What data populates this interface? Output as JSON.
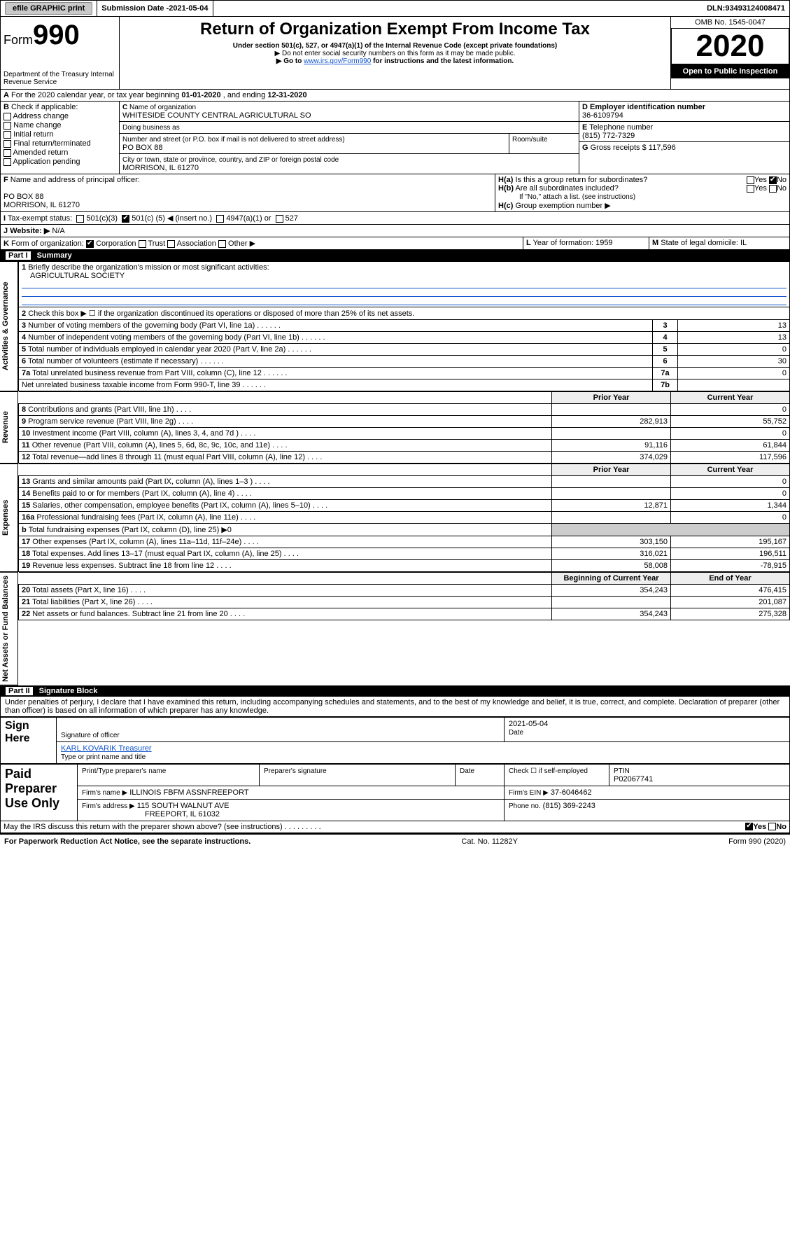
{
  "topbar": {
    "efile": "efile GRAPHIC print",
    "subdate_label": "Submission Date - ",
    "subdate": "2021-05-04",
    "dln_label": "DLN: ",
    "dln": "93493124008471"
  },
  "header": {
    "form_prefix": "Form",
    "form_no": "990",
    "dept": "Department of the Treasury\nInternal Revenue Service",
    "title": "Return of Organization Exempt From Income Tax",
    "sub1": "Under section 501(c), 527, or 4947(a)(1) of the Internal Revenue Code (except private foundations)",
    "sub2": "▶ Do not enter social security numbers on this form as it may be made public.",
    "sub3_pre": "▶ Go to ",
    "sub3_link": "www.irs.gov/Form990",
    "sub3_post": " for instructions and the latest information.",
    "omb": "OMB No. 1545-0047",
    "year": "2020",
    "openpub": "Open to Public Inspection"
  },
  "A": {
    "text": "For the 2020 calendar year, or tax year beginning ",
    "begin": "01-01-2020",
    "mid": " , and ending ",
    "end": "12-31-2020"
  },
  "B": {
    "label": "Check if applicable:",
    "opts": [
      "Address change",
      "Name change",
      "Initial return",
      "Final return/terminated",
      "Amended return",
      "Application pending"
    ]
  },
  "C": {
    "name_label": "Name of organization",
    "name": "WHITESIDE COUNTY CENTRAL AGRICULTURAL SO",
    "dba_label": "Doing business as",
    "addr_label": "Number and street (or P.O. box if mail is not delivered to street address)",
    "room_label": "Room/suite",
    "addr": "PO BOX 88",
    "city_label": "City or town, state or province, country, and ZIP or foreign postal code",
    "city": "MORRISON, IL  61270"
  },
  "D": {
    "label": "Employer identification number",
    "val": "36-6109794"
  },
  "E": {
    "label": "Telephone number",
    "val": "(815) 772-7329"
  },
  "G": {
    "label": "Gross receipts $",
    "val": "117,596"
  },
  "F": {
    "label": "Name and address of principal officer:",
    "line1": "PO BOX 88",
    "line2": "MORRISON, IL  61270"
  },
  "H": {
    "a": "Is this a group return for subordinates?",
    "b": "Are all subordinates included?",
    "b_note": "If \"No,\" attach a list. (see instructions)",
    "c": "Group exemption number ▶",
    "a_ans_no": true
  },
  "I": {
    "label": "Tax-exempt status:",
    "o1": "501(c)(3)",
    "o2_pre": "501(c) (",
    "o2_num": "5",
    "o2_post": ") ◀ (insert no.)",
    "o3": "4947(a)(1) or",
    "o4": "527"
  },
  "J": {
    "label": "Website: ▶",
    "val": "N/A"
  },
  "K": {
    "label": "Form of organization:",
    "opts": [
      "Corporation",
      "Trust",
      "Association",
      "Other ▶"
    ],
    "checked": 0
  },
  "L": {
    "label": "Year of formation:",
    "val": "1959"
  },
  "M": {
    "label": "State of legal domicile:",
    "val": "IL"
  },
  "partI": {
    "bar": "Part I",
    "bar_title": "Summary",
    "l1_label": "Briefly describe the organization's mission or most significant activities:",
    "l1_val": "AGRICULTURAL SOCIETY",
    "l2": "Check this box ▶ ☐ if the organization discontinued its operations or disposed of more than 25% of its net assets.",
    "rows_simple": [
      {
        "n": "3",
        "t": "Number of voting members of the governing body (Part VI, line 1a)",
        "box": "3",
        "v": "13"
      },
      {
        "n": "4",
        "t": "Number of independent voting members of the governing body (Part VI, line 1b)",
        "box": "4",
        "v": "13"
      },
      {
        "n": "5",
        "t": "Total number of individuals employed in calendar year 2020 (Part V, line 2a)",
        "box": "5",
        "v": "0"
      },
      {
        "n": "6",
        "t": "Total number of volunteers (estimate if necessary)",
        "box": "6",
        "v": "30"
      },
      {
        "n": "7a",
        "t": "Total unrelated business revenue from Part VIII, column (C), line 12",
        "box": "7a",
        "v": "0"
      },
      {
        "n": "",
        "t": "Net unrelated business taxable income from Form 990-T, line 39",
        "box": "7b",
        "v": ""
      }
    ],
    "col_prior": "Prior Year",
    "col_curr": "Current Year",
    "sections": [
      {
        "label": "Activities & Governance",
        "span": "simple"
      },
      {
        "label": "Revenue",
        "rows": [
          {
            "n": "8",
            "t": "Contributions and grants (Part VIII, line 1h)",
            "p": "",
            "c": "0"
          },
          {
            "n": "9",
            "t": "Program service revenue (Part VIII, line 2g)",
            "p": "282,913",
            "c": "55,752"
          },
          {
            "n": "10",
            "t": "Investment income (Part VIII, column (A), lines 3, 4, and 7d )",
            "p": "",
            "c": "0"
          },
          {
            "n": "11",
            "t": "Other revenue (Part VIII, column (A), lines 5, 6d, 8c, 9c, 10c, and 11e)",
            "p": "91,116",
            "c": "61,844"
          },
          {
            "n": "12",
            "t": "Total revenue—add lines 8 through 11 (must equal Part VIII, column (A), line 12)",
            "p": "374,029",
            "c": "117,596"
          }
        ]
      },
      {
        "label": "Expenses",
        "rows": [
          {
            "n": "13",
            "t": "Grants and similar amounts paid (Part IX, column (A), lines 1–3 )",
            "p": "",
            "c": "0"
          },
          {
            "n": "14",
            "t": "Benefits paid to or for members (Part IX, column (A), line 4)",
            "p": "",
            "c": "0"
          },
          {
            "n": "15",
            "t": "Salaries, other compensation, employee benefits (Part IX, column (A), lines 5–10)",
            "p": "12,871",
            "c": "1,344"
          },
          {
            "n": "16a",
            "t": "Professional fundraising fees (Part IX, column (A), line 11e)",
            "p": "",
            "c": "0"
          },
          {
            "n": "b",
            "t": "Total fundraising expenses (Part IX, column (D), line 25) ▶0",
            "p": "—",
            "c": "—"
          },
          {
            "n": "17",
            "t": "Other expenses (Part IX, column (A), lines 11a–11d, 11f–24e)",
            "p": "303,150",
            "c": "195,167"
          },
          {
            "n": "18",
            "t": "Total expenses. Add lines 13–17 (must equal Part IX, column (A), line 25)",
            "p": "316,021",
            "c": "196,511"
          },
          {
            "n": "19",
            "t": "Revenue less expenses. Subtract line 18 from line 12",
            "p": "58,008",
            "c": "-78,915"
          }
        ]
      },
      {
        "label": "Net Assets or Fund Balances",
        "hdr_prior": "Beginning of Current Year",
        "hdr_curr": "End of Year",
        "rows": [
          {
            "n": "20",
            "t": "Total assets (Part X, line 16)",
            "p": "354,243",
            "c": "476,415"
          },
          {
            "n": "21",
            "t": "Total liabilities (Part X, line 26)",
            "p": "",
            "c": "201,087"
          },
          {
            "n": "22",
            "t": "Net assets or fund balances. Subtract line 21 from line 20",
            "p": "354,243",
            "c": "275,328"
          }
        ]
      }
    ]
  },
  "partII": {
    "bar": "Part II",
    "bar_title": "Signature Block",
    "decl": "Under penalties of perjury, I declare that I have examined this return, including accompanying schedules and statements, and to the best of my knowledge and belief, it is true, correct, and complete. Declaration of preparer (other than officer) is based on all information of which preparer has any knowledge.",
    "sign_here": "Sign Here",
    "sig_officer": "Signature of officer",
    "sig_date": "2021-05-04",
    "date_label": "Date",
    "name_title": "KARL KOVARIK Treasurer",
    "name_title_label": "Type or print name and title",
    "paid": "Paid Preparer Use Only",
    "pt_name_label": "Print/Type preparer's name",
    "pt_sig_label": "Preparer's signature",
    "pt_date_label": "Date",
    "pt_self": "Check ☐ if self-employed",
    "ptin_label": "PTIN",
    "ptin": "P02067741",
    "firm_name_label": "Firm's name  ▶",
    "firm_name": "ILLINOIS FBFM ASSNFREEPORT",
    "firm_ein_label": "Firm's EIN ▶",
    "firm_ein": "37-6046462",
    "firm_addr_label": "Firm's address ▶",
    "firm_addr1": "115 SOUTH WALNUT AVE",
    "firm_addr2": "FREEPORT, IL  61032",
    "phone_label": "Phone no.",
    "phone": "(815) 369-2243",
    "discuss": "May the IRS discuss this return with the preparer shown above? (see instructions)",
    "yes": "Yes",
    "no": "No"
  },
  "footer": {
    "pra": "For Paperwork Reduction Act Notice, see the separate instructions.",
    "cat": "Cat. No. 11282Y",
    "form": "Form 990 (2020)"
  },
  "colors": {
    "link": "#1155cc",
    "border": "#000000",
    "shade": "#eeeeee"
  }
}
